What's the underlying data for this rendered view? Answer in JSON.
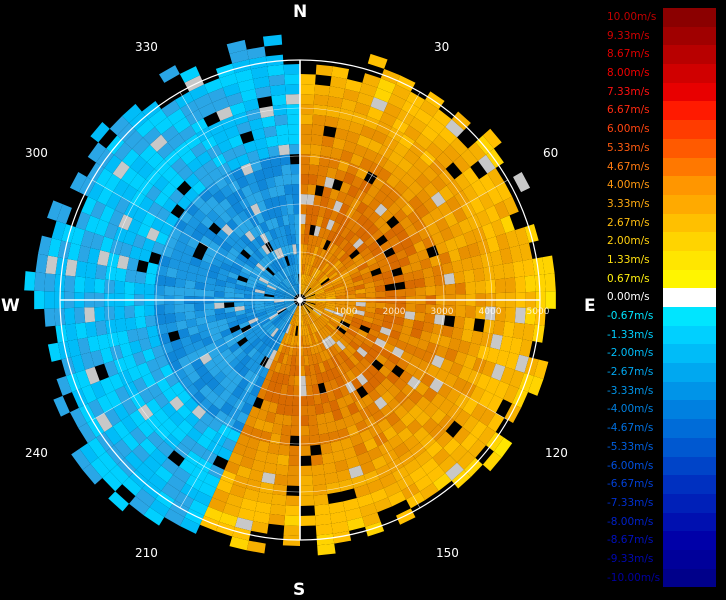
{
  "compass": {
    "north": "N",
    "east": "E",
    "south": "S",
    "west": "W"
  },
  "bearings": [
    "30",
    "60",
    "120",
    "150",
    "210",
    "240",
    "300",
    "330"
  ],
  "range_labels": [
    "1000",
    "2000",
    "3000",
    "4000",
    "5000"
  ],
  "legend": [
    {
      "label": "10.00m/s",
      "color": "#8b0000",
      "text_color": "#c00000"
    },
    {
      "label": "9.33m/s",
      "color": "#a00000",
      "text_color": "#d00000"
    },
    {
      "label": "8.67m/s",
      "color": "#b80000",
      "text_color": "#e00000"
    },
    {
      "label": "8.00m/s",
      "color": "#d00000",
      "text_color": "#f00000"
    },
    {
      "label": "7.33m/s",
      "color": "#e80000",
      "text_color": "#ff1010"
    },
    {
      "label": "6.67m/s",
      "color": "#ff1a00",
      "text_color": "#ff2a10"
    },
    {
      "label": "6.00m/s",
      "color": "#ff3c00",
      "text_color": "#ff4410"
    },
    {
      "label": "5.33m/s",
      "color": "#ff5a00",
      "text_color": "#ff5c10"
    },
    {
      "label": "4.67m/s",
      "color": "#ff7800",
      "text_color": "#ff7a10"
    },
    {
      "label": "4.00m/s",
      "color": "#ff9600",
      "text_color": "#ff9810"
    },
    {
      "label": "3.33m/s",
      "color": "#ffaa00",
      "text_color": "#ffaa10"
    },
    {
      "label": "2.67m/s",
      "color": "#ffc000",
      "text_color": "#ffbe10"
    },
    {
      "label": "2.00m/s",
      "color": "#ffd400",
      "text_color": "#ffd010"
    },
    {
      "label": "1.33m/s",
      "color": "#ffe600",
      "text_color": "#ffe010"
    },
    {
      "label": "0.67m/s",
      "color": "#fff500",
      "text_color": "#fff010"
    },
    {
      "label": "0.00m/s",
      "color": "#ffffff",
      "text_color": "#ffffff"
    },
    {
      "label": "-0.67m/s",
      "color": "#00e5ff",
      "text_color": "#00e5ff"
    },
    {
      "label": "-1.33m/s",
      "color": "#00d0ff",
      "text_color": "#00d0ff"
    },
    {
      "label": "-2.00m/s",
      "color": "#00bcf8",
      "text_color": "#00bcf8"
    },
    {
      "label": "-2.67m/s",
      "color": "#00a8f0",
      "text_color": "#00a8f0"
    },
    {
      "label": "-3.33m/s",
      "color": "#0094e8",
      "text_color": "#0094e8"
    },
    {
      "label": "-4.00m/s",
      "color": "#0080e0",
      "text_color": "#0080e0"
    },
    {
      "label": "-4.67m/s",
      "color": "#006cd8",
      "text_color": "#0070e0"
    },
    {
      "label": "-5.33m/s",
      "color": "#0058d0",
      "text_color": "#0060e0"
    },
    {
      "label": "-6.00m/s",
      "color": "#0044c8",
      "text_color": "#0050e0"
    },
    {
      "label": "-6.67m/s",
      "color": "#0030c0",
      "text_color": "#0040d8"
    },
    {
      "label": "-7.33m/s",
      "color": "#0020b8",
      "text_color": "#0030d0"
    },
    {
      "label": "-8.00m/s",
      "color": "#0010b0",
      "text_color": "#0020c8"
    },
    {
      "label": "-8.67m/s",
      "color": "#0000a8",
      "text_color": "#0010c0"
    },
    {
      "label": "-9.33m/s",
      "color": "#00009a",
      "text_color": "#0008b0"
    },
    {
      "label": "-10.00m/s",
      "color": "#00008a",
      "text_color": "#0000a0"
    }
  ],
  "colors": {
    "background": "#000000",
    "ring": "#ffffff",
    "no_data": "#c8c8c8",
    "approaching": "#2aa6e6",
    "receding": "#f0a818"
  }
}
